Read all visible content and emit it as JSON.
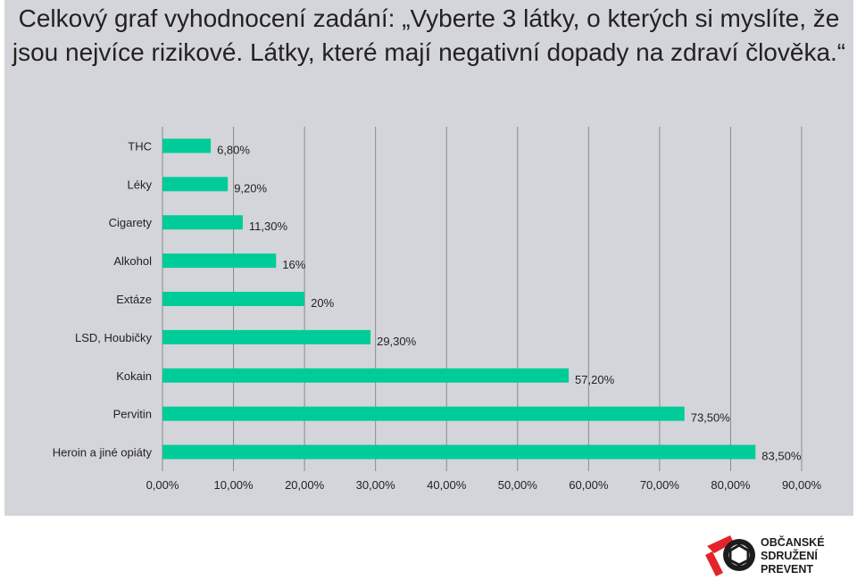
{
  "page": {
    "title": "Celkový graf vyhodnocení zadání: „Vyberte 3 látky, o kterých si myslíte, že jsou nejvíce rizikové. Látky, které mají negativní dopady na zdraví člověka.“"
  },
  "logo": {
    "lines": [
      "OBČANSKÉ",
      "SDRUŽENÍ",
      "PREVENT"
    ],
    "color": "#e3242b"
  },
  "chart_data": {
    "type": "bar",
    "orientation": "horizontal",
    "title": "",
    "xlabel": "",
    "ylabel": "",
    "categories": [
      "THC",
      "Léky",
      "Cigarety",
      "Alkohol",
      "Extáze",
      "LSD, Houbičky",
      "Kokain",
      "Pervitin",
      "Heroin a jiné opiáty"
    ],
    "values": [
      6.8,
      9.2,
      11.3,
      16,
      20,
      29.3,
      57.2,
      73.5,
      83.5
    ],
    "value_labels": [
      "6,80%",
      "9,20%",
      "11,30%",
      "16%",
      "20%",
      "29,30%",
      "57,20%",
      "73,50%",
      "83,50%"
    ],
    "xlim": [
      0,
      90
    ],
    "x_ticks": [
      0,
      10,
      20,
      30,
      40,
      50,
      60,
      70,
      80,
      90
    ],
    "x_tick_labels": [
      "0,00%",
      "10,00%",
      "20,00%",
      "30,00%",
      "40,00%",
      "50,00%",
      "60,00%",
      "70,00%",
      "80,00%",
      "90,00%"
    ],
    "grid": true,
    "legend": "none",
    "bar_color": "#00cc99",
    "grid_color": "#8a8a8a"
  }
}
